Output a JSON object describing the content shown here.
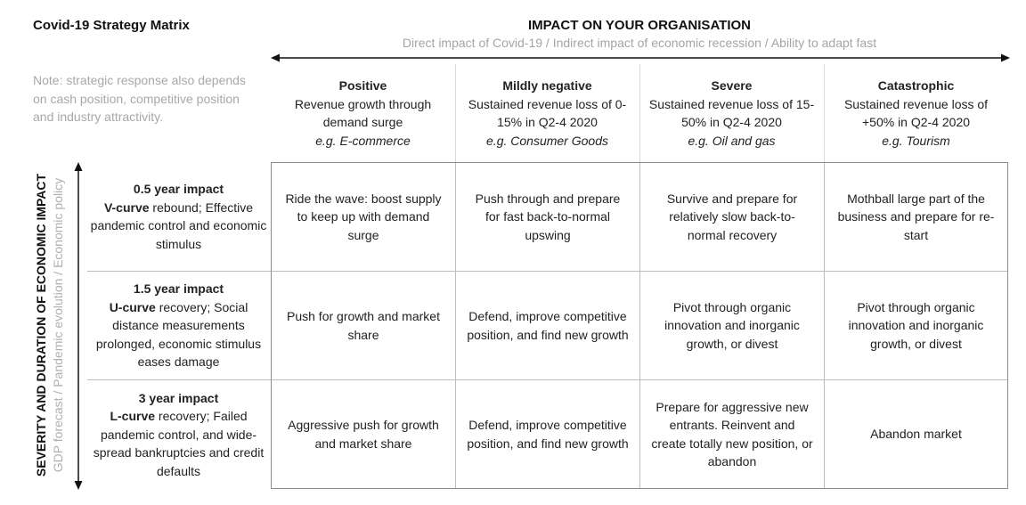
{
  "title": "Covid-19 Strategy Matrix",
  "top_axis": {
    "heading": "IMPACT ON YOUR ORGANISATION",
    "subheading": "Direct impact of Covid-19 / Indirect impact of economic recession / Ability to adapt fast"
  },
  "note": "Note: strategic response also depends on cash position, competitive position and industry attractivity.",
  "left_axis": {
    "heading": "SEVERITY AND DURATION OF ECONOMIC IMPACT",
    "subheading": "GDP forecast / Pandemic evolution / Economic policy"
  },
  "columns": [
    {
      "title": "Positive",
      "description": "Revenue growth through demand surge",
      "example": "e.g. E-commerce"
    },
    {
      "title": "Mildly negative",
      "description": "Sustained revenue loss of 0-15% in Q2-4 2020",
      "example": "e.g. Consumer Goods"
    },
    {
      "title": "Severe",
      "description": "Sustained revenue loss of 15-50% in Q2-4 2020",
      "example": "e.g. Oil and gas"
    },
    {
      "title": "Catastrophic",
      "description": "Sustained revenue loss of +50% in Q2-4 2020",
      "example": "e.g. Tourism"
    }
  ],
  "rows": [
    {
      "title": "0.5 year impact",
      "curve": "V-curve",
      "description": " rebound; Effective pandemic control and economic stimulus"
    },
    {
      "title": "1.5 year impact",
      "curve": "U-curve",
      "description": " recovery; Social distance measurements prolonged, economic stimulus eases damage"
    },
    {
      "title": "3 year impact",
      "curve": "L-curve",
      "description": " recovery; Failed pandemic control, and wide-spread bankruptcies and credit defaults"
    }
  ],
  "cells": [
    [
      "Ride the wave: boost supply to keep up with demand surge",
      "Push through and prepare for fast back-to-normal upswing",
      "Survive and prepare for relatively slow back-to-normal recovery",
      "Mothball large part of the business and prepare for re-start"
    ],
    [
      "Push for growth and market share",
      "Defend, improve competitive position, and find new growth",
      "Pivot through organic innovation and inorganic growth, or divest",
      "Pivot through organic innovation and inorganic growth, or divest"
    ],
    [
      "Aggressive push for growth and market share",
      "Defend, improve competitive position, and find new growth",
      "Prepare for aggressive new entrants. Reinvent and create totally new position, or abandon",
      "Abandon market"
    ]
  ],
  "colors": {
    "text": "#1c1c1c",
    "muted": "#a8a8a8",
    "grid": "#bdbdbd",
    "border": "#8c8c8c"
  }
}
